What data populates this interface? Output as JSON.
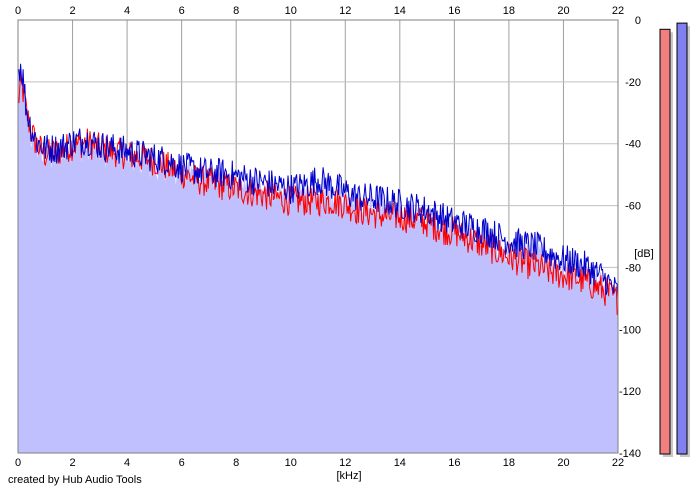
{
  "app": {
    "credit": "created by Hub Audio Tools"
  },
  "chart_data": {
    "type": "area",
    "xlabel": "[kHz]",
    "ylabel": "[dB]",
    "xlim": [
      0,
      22
    ],
    "ylim": [
      -140,
      0
    ],
    "x_ticks": [
      "0",
      "2",
      "4",
      "6",
      "8",
      "10",
      "12",
      "14",
      "16",
      "18",
      "20",
      "22"
    ],
    "y_ticks": [
      "0",
      "-20",
      "-40",
      "-60",
      "-80",
      "-100",
      "-120",
      "-140"
    ],
    "grid": true,
    "colors": {
      "fill": "#c0c0ff",
      "left": "#ff0000",
      "right": "#0000cc",
      "meter_left": "#f08080",
      "meter_right": "#8080f0"
    },
    "series": [
      {
        "channel": "left",
        "x": [
          0.0,
          0.1,
          0.2,
          0.3,
          0.5,
          0.7,
          1.0,
          1.5,
          2.0,
          2.5,
          3.0,
          3.5,
          4.0,
          4.5,
          5.0,
          5.5,
          6.0,
          6.5,
          7.0,
          7.5,
          8.0,
          8.5,
          9.0,
          9.5,
          10.0,
          10.5,
          11.0,
          11.5,
          12.0,
          12.5,
          13.0,
          13.5,
          14.0,
          14.5,
          15.0,
          15.5,
          16.0,
          16.5,
          17.0,
          17.5,
          18.0,
          18.5,
          19.0,
          19.5,
          20.0,
          20.5,
          21.0,
          21.5,
          22.0
        ],
        "values": [
          -25,
          -20,
          -22,
          -28,
          -35,
          -39,
          -42,
          -41,
          -39,
          -38,
          -40,
          -41,
          -42,
          -43,
          -44,
          -46,
          -48,
          -50,
          -51,
          -52,
          -53,
          -54,
          -55,
          -56,
          -57,
          -57,
          -57,
          -57,
          -58,
          -60,
          -61,
          -62,
          -62,
          -63,
          -64,
          -66,
          -67,
          -69,
          -71,
          -73,
          -75,
          -77,
          -78,
          -80,
          -81,
          -82,
          -84,
          -86,
          -89
        ]
      },
      {
        "channel": "right",
        "x": [
          0.0,
          0.1,
          0.2,
          0.3,
          0.5,
          0.7,
          1.0,
          1.5,
          2.0,
          2.5,
          3.0,
          3.5,
          4.0,
          4.5,
          5.0,
          5.5,
          6.0,
          6.5,
          7.0,
          7.5,
          8.0,
          8.5,
          9.0,
          9.5,
          10.0,
          10.5,
          11.0,
          11.5,
          12.0,
          12.5,
          13.0,
          13.5,
          14.0,
          14.5,
          15.0,
          15.5,
          16.0,
          16.5,
          17.0,
          17.5,
          18.0,
          18.5,
          19.0,
          19.5,
          20.0,
          20.5,
          21.0,
          21.5,
          22.0
        ],
        "values": [
          -15,
          -13,
          -18,
          -27,
          -34,
          -38,
          -40,
          -40,
          -38,
          -37,
          -39,
          -40,
          -41,
          -42,
          -43,
          -44,
          -46,
          -47,
          -48,
          -48,
          -49,
          -50,
          -51,
          -52,
          -53,
          -52,
          -50,
          -52,
          -54,
          -56,
          -56,
          -57,
          -58,
          -59,
          -60,
          -62,
          -64,
          -65,
          -66,
          -68,
          -70,
          -71,
          -72,
          -74,
          -76,
          -77,
          -79,
          -82,
          -87
        ]
      }
    ],
    "meters": {
      "min": -140,
      "max": 0,
      "left_level": -3,
      "right_level": -1
    }
  }
}
